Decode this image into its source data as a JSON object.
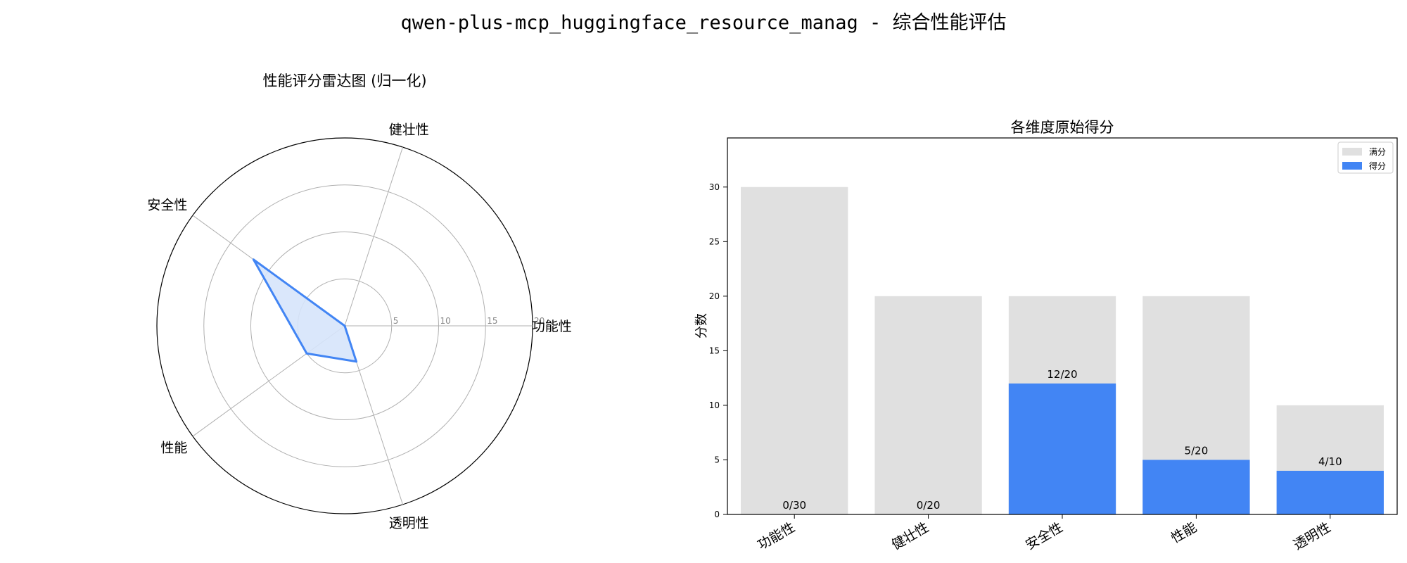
{
  "figure": {
    "title": "qwen-plus-mcp_huggingface_resource_manag - 综合性能评估"
  },
  "chart_data": [
    {
      "type": "radar",
      "title": "性能评分雷达图 (归一化)",
      "axes": [
        "功能性",
        "健壮性",
        "安全性",
        "性能",
        "透明性"
      ],
      "values": [
        0,
        0,
        12,
        5,
        4
      ],
      "rlim": [
        0,
        20
      ],
      "rticks": [
        5,
        10,
        15,
        20
      ],
      "rtick_labels": [
        "5",
        "10",
        "15",
        "20"
      ],
      "grid": true,
      "colors": {
        "line": "#4285f4",
        "fill": "#d6e4fb"
      }
    },
    {
      "type": "bar",
      "title": "各维度原始得分",
      "categories": [
        "功能性",
        "健壮性",
        "安全性",
        "性能",
        "透明性"
      ],
      "series": [
        {
          "name": "满分",
          "values": [
            30,
            20,
            20,
            20,
            10
          ],
          "color": "#e0e0e0"
        },
        {
          "name": "得分",
          "values": [
            0,
            0,
            12,
            5,
            4
          ],
          "color": "#4285f4"
        }
      ],
      "data_labels": [
        "0/30",
        "0/20",
        "12/20",
        "5/20",
        "4/10"
      ],
      "ylabel": "分数",
      "xlabel": "",
      "ylim": [
        0,
        34.5
      ],
      "yticks": [
        0,
        5,
        10,
        15,
        20,
        25,
        30
      ],
      "grid": false,
      "legend": "top-right"
    }
  ]
}
